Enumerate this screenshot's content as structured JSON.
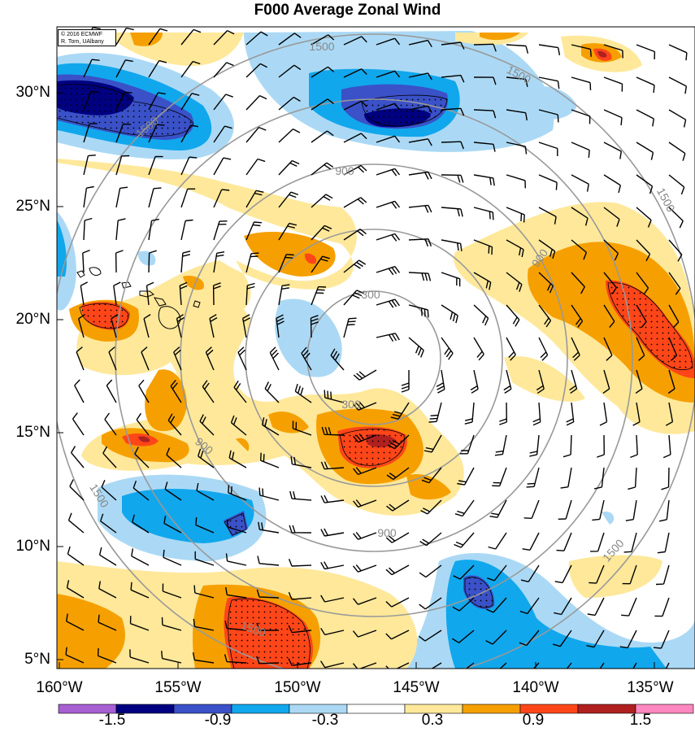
{
  "title": "F000 Average Zonal Wind",
  "credit": {
    "line1": "© 2016 ECMWF",
    "line2": "R. Torn, UAlbany"
  },
  "lat_labels": [
    "30°N",
    "25°N",
    "20°N",
    "15°N",
    "10°N",
    "5°N"
  ],
  "lon_labels": [
    "160°W",
    "155°W",
    "150°W",
    "145°W",
    "140°W",
    "135°W"
  ],
  "contour_labels": [
    "300",
    "300",
    "900",
    "900",
    "900",
    "900",
    "1500",
    "1500",
    "1500",
    "1500",
    "1500",
    "1500",
    "1500"
  ],
  "colorbar": {
    "tick_labels": [
      "-1.5",
      "-0.9",
      "-0.3",
      "0.3",
      "0.9",
      "1.5"
    ],
    "colors": [
      "#a75fd2",
      "#000080",
      "#3a51c8",
      "#11a7ec",
      "#abd9f5",
      "#ffffff",
      "#ffe89a",
      "#f5a000",
      "#ff4619",
      "#b0201f",
      "#ff88c0"
    ]
  },
  "field_colors": {
    "neg_deep": "#000080",
    "neg_mid": "#3a51c8",
    "neg_light": "#11a7ec",
    "neg_pale": "#abd9f5",
    "pos_pale": "#ffe89a",
    "pos_light": "#f5a000",
    "pos_mid": "#ff4619",
    "pos_deep": "#b0201f",
    "range_ring": "#999999"
  }
}
